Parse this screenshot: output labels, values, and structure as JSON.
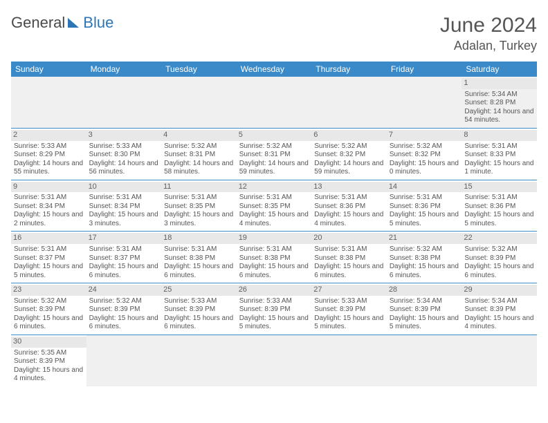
{
  "brand": {
    "part1": "General",
    "part2": "Blue",
    "color1": "#4a4a4a",
    "color2": "#2e75b6"
  },
  "title": "June 2024",
  "location": "Adalan, Turkey",
  "colors": {
    "header_bg": "#3a8ac9",
    "header_text": "#ffffff",
    "daynum_bg": "#e8e8e8",
    "cell_border": "#3a8ac9",
    "text": "#555555",
    "empty_bg": "#f0f0f0"
  },
  "weekdays": [
    "Sunday",
    "Monday",
    "Tuesday",
    "Wednesday",
    "Thursday",
    "Friday",
    "Saturday"
  ],
  "weeks": [
    [
      null,
      null,
      null,
      null,
      null,
      null,
      {
        "d": "1",
        "sr": "5:34 AM",
        "ss": "8:28 PM",
        "dl": "14 hours and 54 minutes."
      }
    ],
    [
      {
        "d": "2",
        "sr": "5:33 AM",
        "ss": "8:29 PM",
        "dl": "14 hours and 55 minutes."
      },
      {
        "d": "3",
        "sr": "5:33 AM",
        "ss": "8:30 PM",
        "dl": "14 hours and 56 minutes."
      },
      {
        "d": "4",
        "sr": "5:32 AM",
        "ss": "8:31 PM",
        "dl": "14 hours and 58 minutes."
      },
      {
        "d": "5",
        "sr": "5:32 AM",
        "ss": "8:31 PM",
        "dl": "14 hours and 59 minutes."
      },
      {
        "d": "6",
        "sr": "5:32 AM",
        "ss": "8:32 PM",
        "dl": "14 hours and 59 minutes."
      },
      {
        "d": "7",
        "sr": "5:32 AM",
        "ss": "8:32 PM",
        "dl": "15 hours and 0 minutes."
      },
      {
        "d": "8",
        "sr": "5:31 AM",
        "ss": "8:33 PM",
        "dl": "15 hours and 1 minute."
      }
    ],
    [
      {
        "d": "9",
        "sr": "5:31 AM",
        "ss": "8:34 PM",
        "dl": "15 hours and 2 minutes."
      },
      {
        "d": "10",
        "sr": "5:31 AM",
        "ss": "8:34 PM",
        "dl": "15 hours and 3 minutes."
      },
      {
        "d": "11",
        "sr": "5:31 AM",
        "ss": "8:35 PM",
        "dl": "15 hours and 3 minutes."
      },
      {
        "d": "12",
        "sr": "5:31 AM",
        "ss": "8:35 PM",
        "dl": "15 hours and 4 minutes."
      },
      {
        "d": "13",
        "sr": "5:31 AM",
        "ss": "8:36 PM",
        "dl": "15 hours and 4 minutes."
      },
      {
        "d": "14",
        "sr": "5:31 AM",
        "ss": "8:36 PM",
        "dl": "15 hours and 5 minutes."
      },
      {
        "d": "15",
        "sr": "5:31 AM",
        "ss": "8:36 PM",
        "dl": "15 hours and 5 minutes."
      }
    ],
    [
      {
        "d": "16",
        "sr": "5:31 AM",
        "ss": "8:37 PM",
        "dl": "15 hours and 5 minutes."
      },
      {
        "d": "17",
        "sr": "5:31 AM",
        "ss": "8:37 PM",
        "dl": "15 hours and 6 minutes."
      },
      {
        "d": "18",
        "sr": "5:31 AM",
        "ss": "8:38 PM",
        "dl": "15 hours and 6 minutes."
      },
      {
        "d": "19",
        "sr": "5:31 AM",
        "ss": "8:38 PM",
        "dl": "15 hours and 6 minutes."
      },
      {
        "d": "20",
        "sr": "5:31 AM",
        "ss": "8:38 PM",
        "dl": "15 hours and 6 minutes."
      },
      {
        "d": "21",
        "sr": "5:32 AM",
        "ss": "8:38 PM",
        "dl": "15 hours and 6 minutes."
      },
      {
        "d": "22",
        "sr": "5:32 AM",
        "ss": "8:39 PM",
        "dl": "15 hours and 6 minutes."
      }
    ],
    [
      {
        "d": "23",
        "sr": "5:32 AM",
        "ss": "8:39 PM",
        "dl": "15 hours and 6 minutes."
      },
      {
        "d": "24",
        "sr": "5:32 AM",
        "ss": "8:39 PM",
        "dl": "15 hours and 6 minutes."
      },
      {
        "d": "25",
        "sr": "5:33 AM",
        "ss": "8:39 PM",
        "dl": "15 hours and 6 minutes."
      },
      {
        "d": "26",
        "sr": "5:33 AM",
        "ss": "8:39 PM",
        "dl": "15 hours and 5 minutes."
      },
      {
        "d": "27",
        "sr": "5:33 AM",
        "ss": "8:39 PM",
        "dl": "15 hours and 5 minutes."
      },
      {
        "d": "28",
        "sr": "5:34 AM",
        "ss": "8:39 PM",
        "dl": "15 hours and 5 minutes."
      },
      {
        "d": "29",
        "sr": "5:34 AM",
        "ss": "8:39 PM",
        "dl": "15 hours and 4 minutes."
      }
    ],
    [
      {
        "d": "30",
        "sr": "5:35 AM",
        "ss": "8:39 PM",
        "dl": "15 hours and 4 minutes."
      },
      null,
      null,
      null,
      null,
      null,
      null
    ]
  ],
  "labels": {
    "sunrise": "Sunrise:",
    "sunset": "Sunset:",
    "daylight": "Daylight:"
  }
}
